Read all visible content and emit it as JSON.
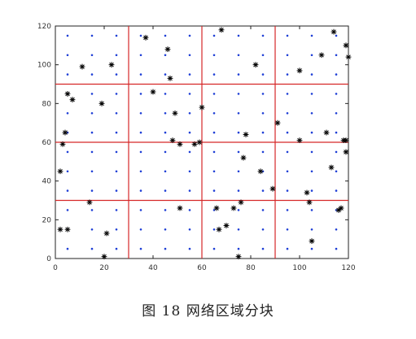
{
  "chart_data": {
    "type": "scatter",
    "title": "",
    "xlabel": "",
    "ylabel": "",
    "xlim": [
      0,
      120
    ],
    "ylim": [
      0,
      120
    ],
    "xticks": [
      "0",
      "20",
      "40",
      "60",
      "80",
      "100",
      "120"
    ],
    "yticks": [
      "0",
      "20",
      "40",
      "60",
      "80",
      "100",
      "120"
    ],
    "grid_lines": {
      "x": [
        30,
        60,
        90
      ],
      "y": [
        30,
        60,
        90
      ],
      "color": "#d62728"
    },
    "series": [
      {
        "marker": "dot",
        "color": "#1f3fd6",
        "x_positions": [
          5,
          15,
          25,
          35,
          45,
          55,
          65,
          75,
          85,
          95,
          105,
          115
        ],
        "y_positions": [
          5,
          15,
          25,
          35,
          45,
          55,
          65,
          75,
          85,
          95,
          105,
          115
        ]
      },
      {
        "marker": "asterisk",
        "color": "#000000",
        "points": [
          [
            11,
            99
          ],
          [
            23,
            100
          ],
          [
            37,
            114
          ],
          [
            46,
            108
          ],
          [
            47,
            93
          ],
          [
            68,
            118
          ],
          [
            82,
            100
          ],
          [
            100,
            97
          ],
          [
            109,
            105
          ],
          [
            114,
            117
          ],
          [
            119,
            110
          ],
          [
            120,
            104
          ],
          [
            5,
            85
          ],
          [
            7,
            82
          ],
          [
            19,
            80
          ],
          [
            40,
            86
          ],
          [
            49,
            75
          ],
          [
            60,
            78
          ],
          [
            91,
            70
          ],
          [
            4,
            65
          ],
          [
            3,
            59
          ],
          [
            48,
            61
          ],
          [
            51,
            59
          ],
          [
            57,
            59
          ],
          [
            59,
            60
          ],
          [
            78,
            64
          ],
          [
            100,
            61
          ],
          [
            111,
            65
          ],
          [
            113,
            47
          ],
          [
            118,
            61
          ],
          [
            119,
            61
          ],
          [
            119,
            55
          ],
          [
            2,
            45
          ],
          [
            77,
            52
          ],
          [
            84,
            45
          ],
          [
            89,
            36
          ],
          [
            103,
            34
          ],
          [
            2,
            15
          ],
          [
            5,
            15
          ],
          [
            14,
            29
          ],
          [
            21,
            13
          ],
          [
            20,
            1
          ],
          [
            51,
            26
          ],
          [
            66,
            26
          ],
          [
            67,
            15
          ],
          [
            70,
            17
          ],
          [
            73,
            26
          ],
          [
            76,
            29
          ],
          [
            75,
            1
          ],
          [
            104,
            29
          ],
          [
            105,
            9
          ],
          [
            116,
            25
          ],
          [
            117,
            26
          ]
        ]
      }
    ]
  },
  "caption": "图  18 网络区域分块"
}
